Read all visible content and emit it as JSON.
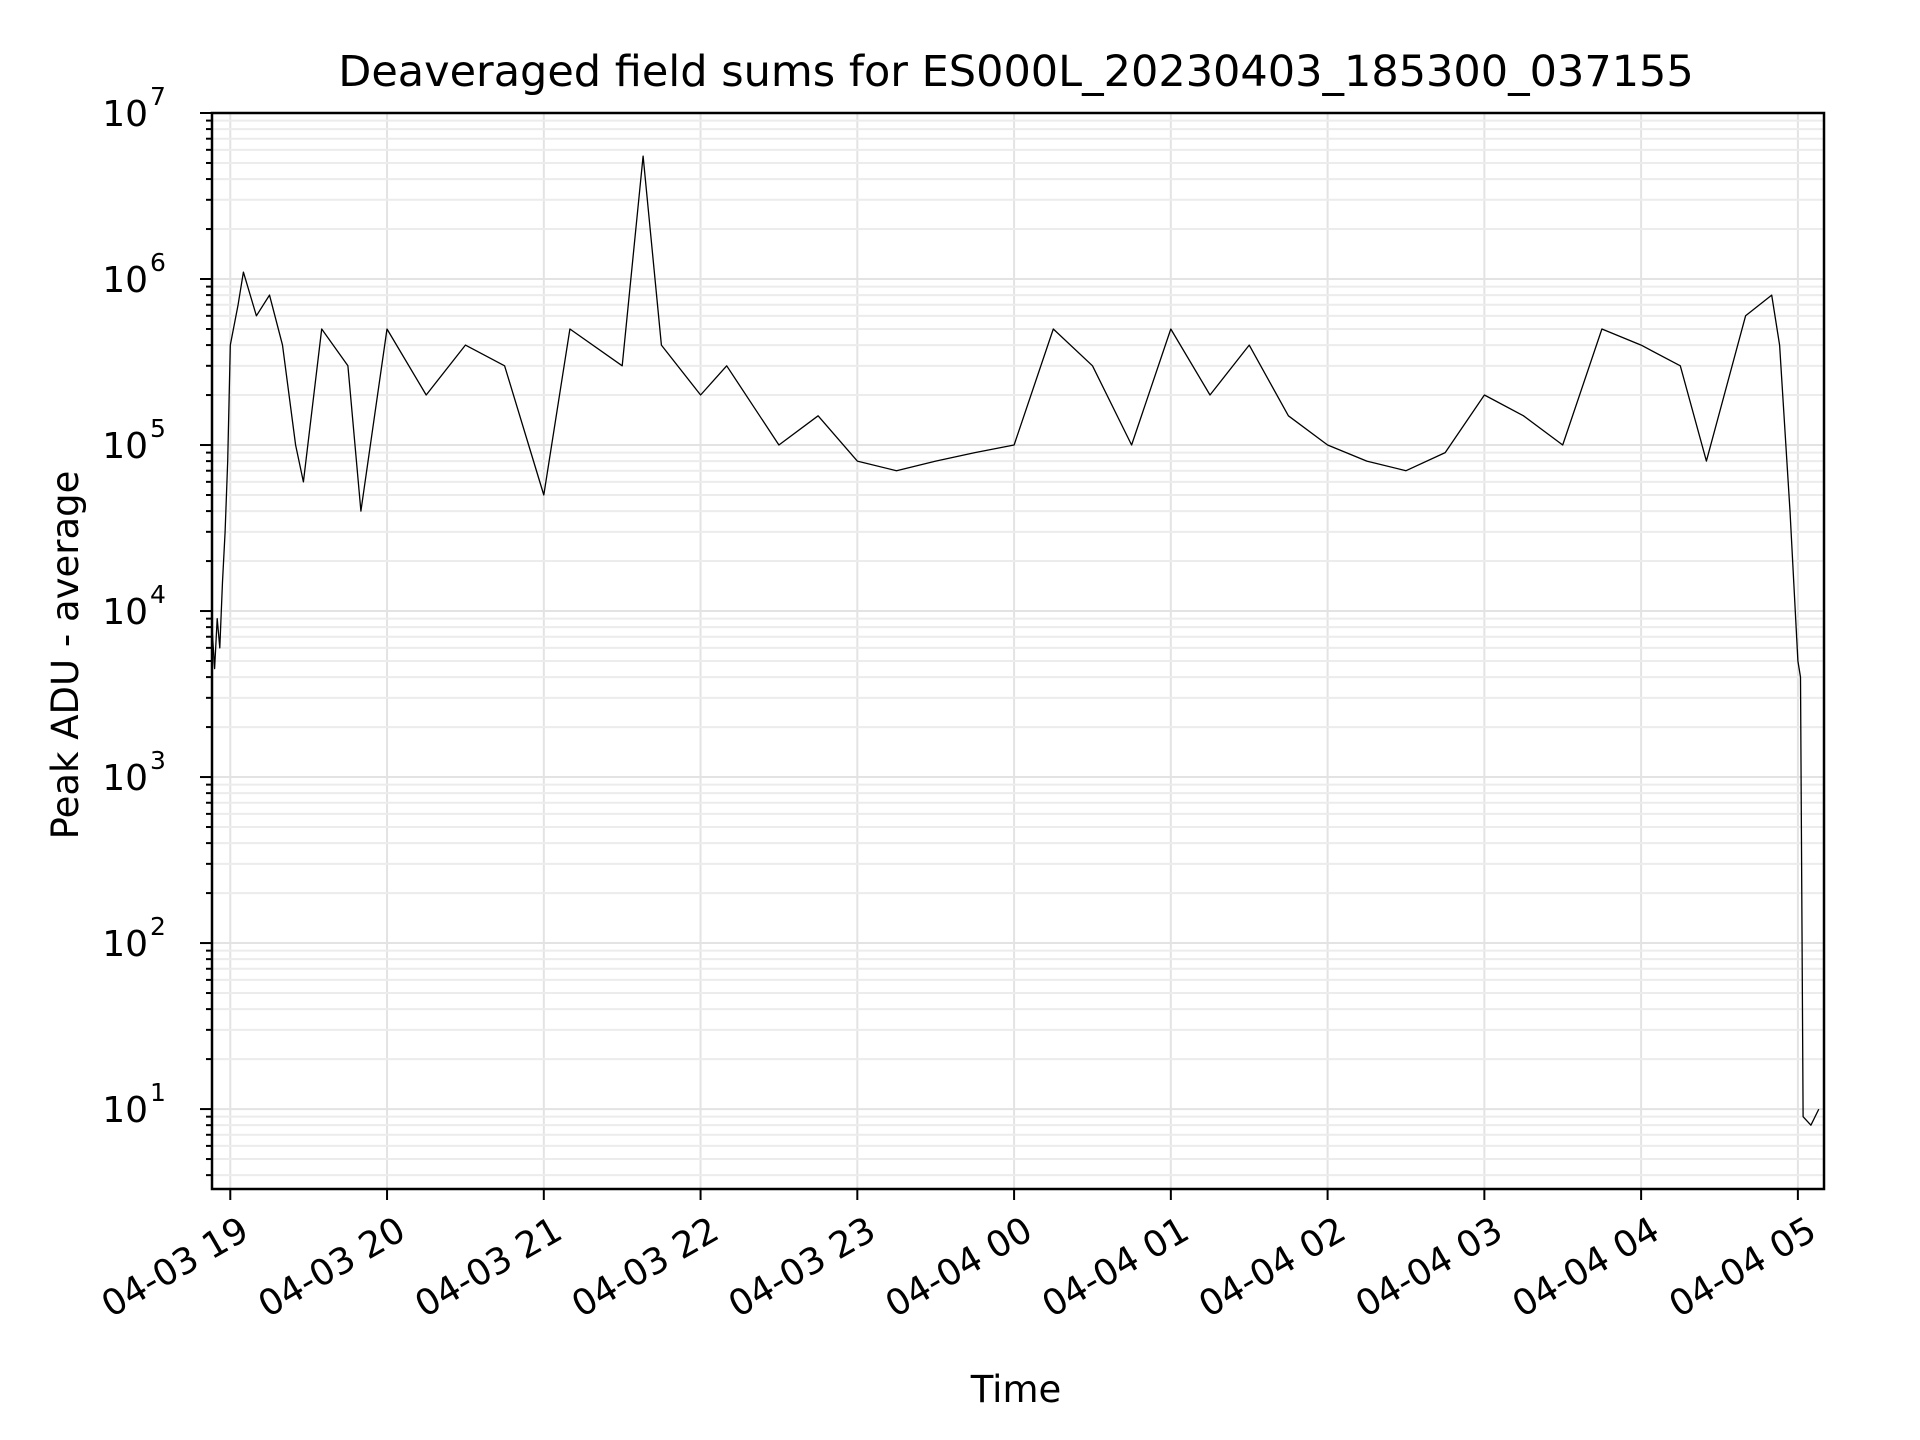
{
  "chart_data": {
    "type": "line",
    "title": "Deaveraged field sums for ES000L_20230403_185300_037155",
    "xlabel": "Time",
    "ylabel": "Peak ADU - average",
    "yscale": "log",
    "ylim": [
      3.3,
      10000000
    ],
    "xlim": [
      "2023-04-03 18:53:00",
      "2023-04-04 05:10:00"
    ],
    "grid": true,
    "x_ticks": [
      {
        "value": "2023-04-03 19:00",
        "label": "04-03 19"
      },
      {
        "value": "2023-04-03 20:00",
        "label": "04-03 20"
      },
      {
        "value": "2023-04-03 21:00",
        "label": "04-03 21"
      },
      {
        "value": "2023-04-03 22:00",
        "label": "04-03 22"
      },
      {
        "value": "2023-04-03 23:00",
        "label": "04-03 23"
      },
      {
        "value": "2023-04-04 00:00",
        "label": "04-04 00"
      },
      {
        "value": "2023-04-04 01:00",
        "label": "04-04 01"
      },
      {
        "value": "2023-04-04 02:00",
        "label": "04-04 02"
      },
      {
        "value": "2023-04-04 03:00",
        "label": "04-04 03"
      },
      {
        "value": "2023-04-04 04:00",
        "label": "04-04 04"
      },
      {
        "value": "2023-04-04 05:00",
        "label": "04-04 05"
      }
    ],
    "y_ticks": [
      {
        "value": 10,
        "base": "10",
        "exp": "1"
      },
      {
        "value": 100,
        "base": "10",
        "exp": "2"
      },
      {
        "value": 1000,
        "base": "10",
        "exp": "3"
      },
      {
        "value": 10000,
        "base": "10",
        "exp": "4"
      },
      {
        "value": 100000,
        "base": "10",
        "exp": "5"
      },
      {
        "value": 1000000,
        "base": "10",
        "exp": "6"
      },
      {
        "value": 10000000,
        "base": "10",
        "exp": "7"
      }
    ],
    "series": [
      {
        "color": "#000000",
        "points": [
          [
            "2023-04-03 18:53",
            8000
          ],
          [
            "2023-04-03 18:54",
            4500
          ],
          [
            "2023-04-03 18:55",
            9000
          ],
          [
            "2023-04-03 18:56",
            6000
          ],
          [
            "2023-04-03 18:57",
            15000
          ],
          [
            "2023-04-03 18:58",
            30000
          ],
          [
            "2023-04-03 18:59",
            80000
          ],
          [
            "2023-04-03 19:00",
            400000
          ],
          [
            "2023-04-03 19:03",
            700000
          ],
          [
            "2023-04-03 19:05",
            1100000
          ],
          [
            "2023-04-03 19:10",
            600000
          ],
          [
            "2023-04-03 19:15",
            800000
          ],
          [
            "2023-04-03 19:20",
            400000
          ],
          [
            "2023-04-03 19:25",
            100000
          ],
          [
            "2023-04-03 19:28",
            60000
          ],
          [
            "2023-04-03 19:35",
            500000
          ],
          [
            "2023-04-03 19:45",
            300000
          ],
          [
            "2023-04-03 19:50",
            40000
          ],
          [
            "2023-04-03 20:00",
            500000
          ],
          [
            "2023-04-03 20:15",
            200000
          ],
          [
            "2023-04-03 20:30",
            400000
          ],
          [
            "2023-04-03 20:45",
            300000
          ],
          [
            "2023-04-03 21:00",
            50000
          ],
          [
            "2023-04-03 21:10",
            500000
          ],
          [
            "2023-04-03 21:30",
            300000
          ],
          [
            "2023-04-03 21:38",
            5500000
          ],
          [
            "2023-04-03 21:45",
            400000
          ],
          [
            "2023-04-03 22:00",
            200000
          ],
          [
            "2023-04-03 22:10",
            300000
          ],
          [
            "2023-04-03 22:30",
            100000
          ],
          [
            "2023-04-03 22:45",
            150000
          ],
          [
            "2023-04-03 23:00",
            80000
          ],
          [
            "2023-04-03 23:15",
            70000
          ],
          [
            "2023-04-03 23:30",
            80000
          ],
          [
            "2023-04-03 23:45",
            90000
          ],
          [
            "2023-04-04 00:00",
            100000
          ],
          [
            "2023-04-04 00:15",
            500000
          ],
          [
            "2023-04-04 00:30",
            300000
          ],
          [
            "2023-04-04 00:45",
            100000
          ],
          [
            "2023-04-04 01:00",
            500000
          ],
          [
            "2023-04-04 01:15",
            200000
          ],
          [
            "2023-04-04 01:30",
            400000
          ],
          [
            "2023-04-04 01:45",
            150000
          ],
          [
            "2023-04-04 02:00",
            100000
          ],
          [
            "2023-04-04 02:15",
            80000
          ],
          [
            "2023-04-04 02:30",
            70000
          ],
          [
            "2023-04-04 02:45",
            90000
          ],
          [
            "2023-04-04 03:00",
            200000
          ],
          [
            "2023-04-04 03:15",
            150000
          ],
          [
            "2023-04-04 03:30",
            100000
          ],
          [
            "2023-04-04 03:45",
            500000
          ],
          [
            "2023-04-04 04:00",
            400000
          ],
          [
            "2023-04-04 04:15",
            300000
          ],
          [
            "2023-04-04 04:25",
            80000
          ],
          [
            "2023-04-04 04:40",
            600000
          ],
          [
            "2023-04-04 04:50",
            800000
          ],
          [
            "2023-04-04 04:53",
            400000
          ],
          [
            "2023-04-04 04:57",
            40000
          ],
          [
            "2023-04-04 05:00",
            5000
          ],
          [
            "2023-04-04 05:01",
            4000
          ],
          [
            "2023-04-04 05:02",
            9
          ],
          [
            "2023-04-04 05:05",
            8
          ],
          [
            "2023-04-04 05:08",
            10
          ]
        ]
      }
    ]
  }
}
